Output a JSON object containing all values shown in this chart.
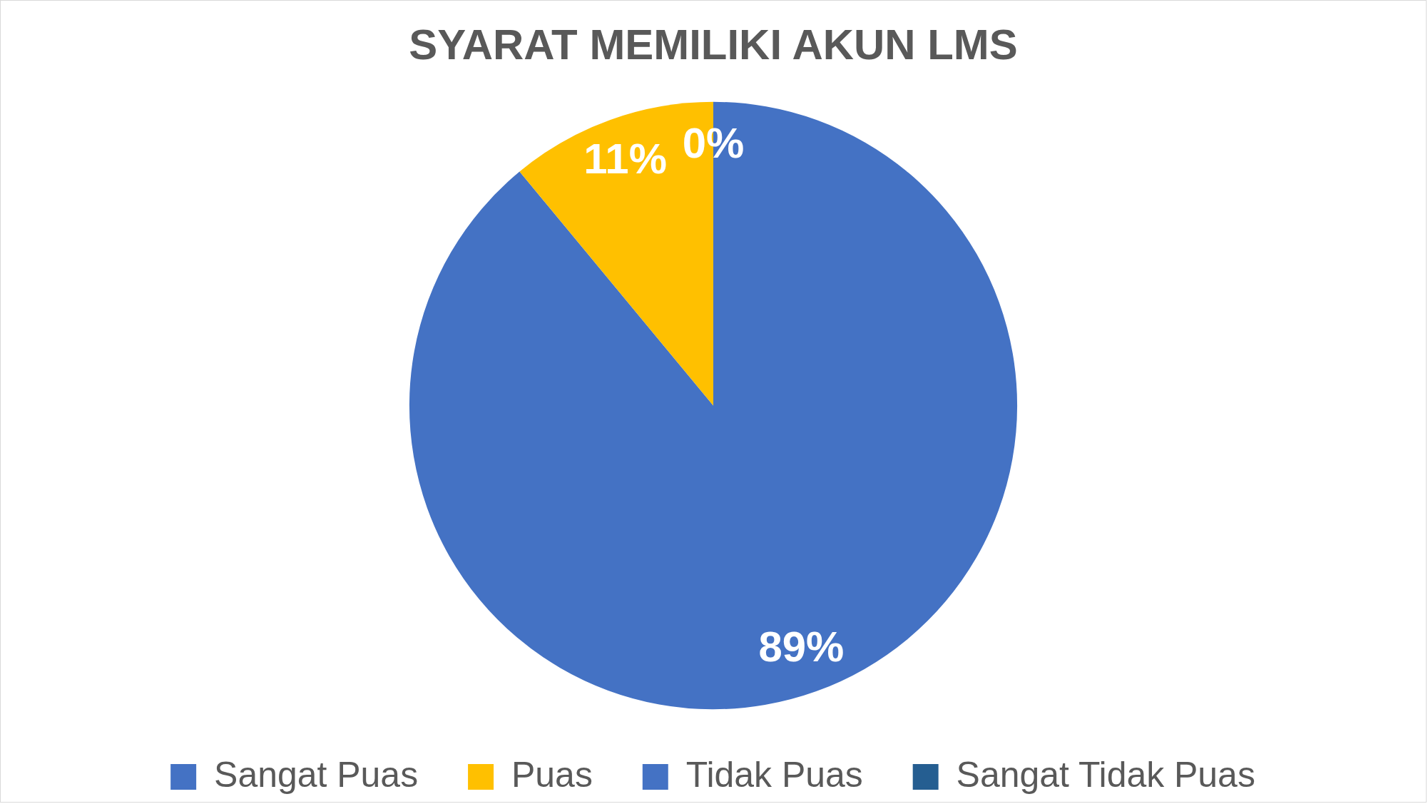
{
  "chart_data": {
    "type": "pie",
    "title": "SYARAT MEMILIKI AKUN LMS",
    "categories": [
      "Sangat Puas",
      "Puas",
      "Tidak Puas",
      "Sangat Tidak Puas"
    ],
    "values": [
      89,
      11,
      0,
      0
    ],
    "colors": [
      "#4472c4",
      "#ffc000",
      "#4472c4",
      "#255e91"
    ],
    "value_labels": [
      "89%",
      "11%",
      "0%",
      null
    ],
    "legend": "bottom"
  }
}
